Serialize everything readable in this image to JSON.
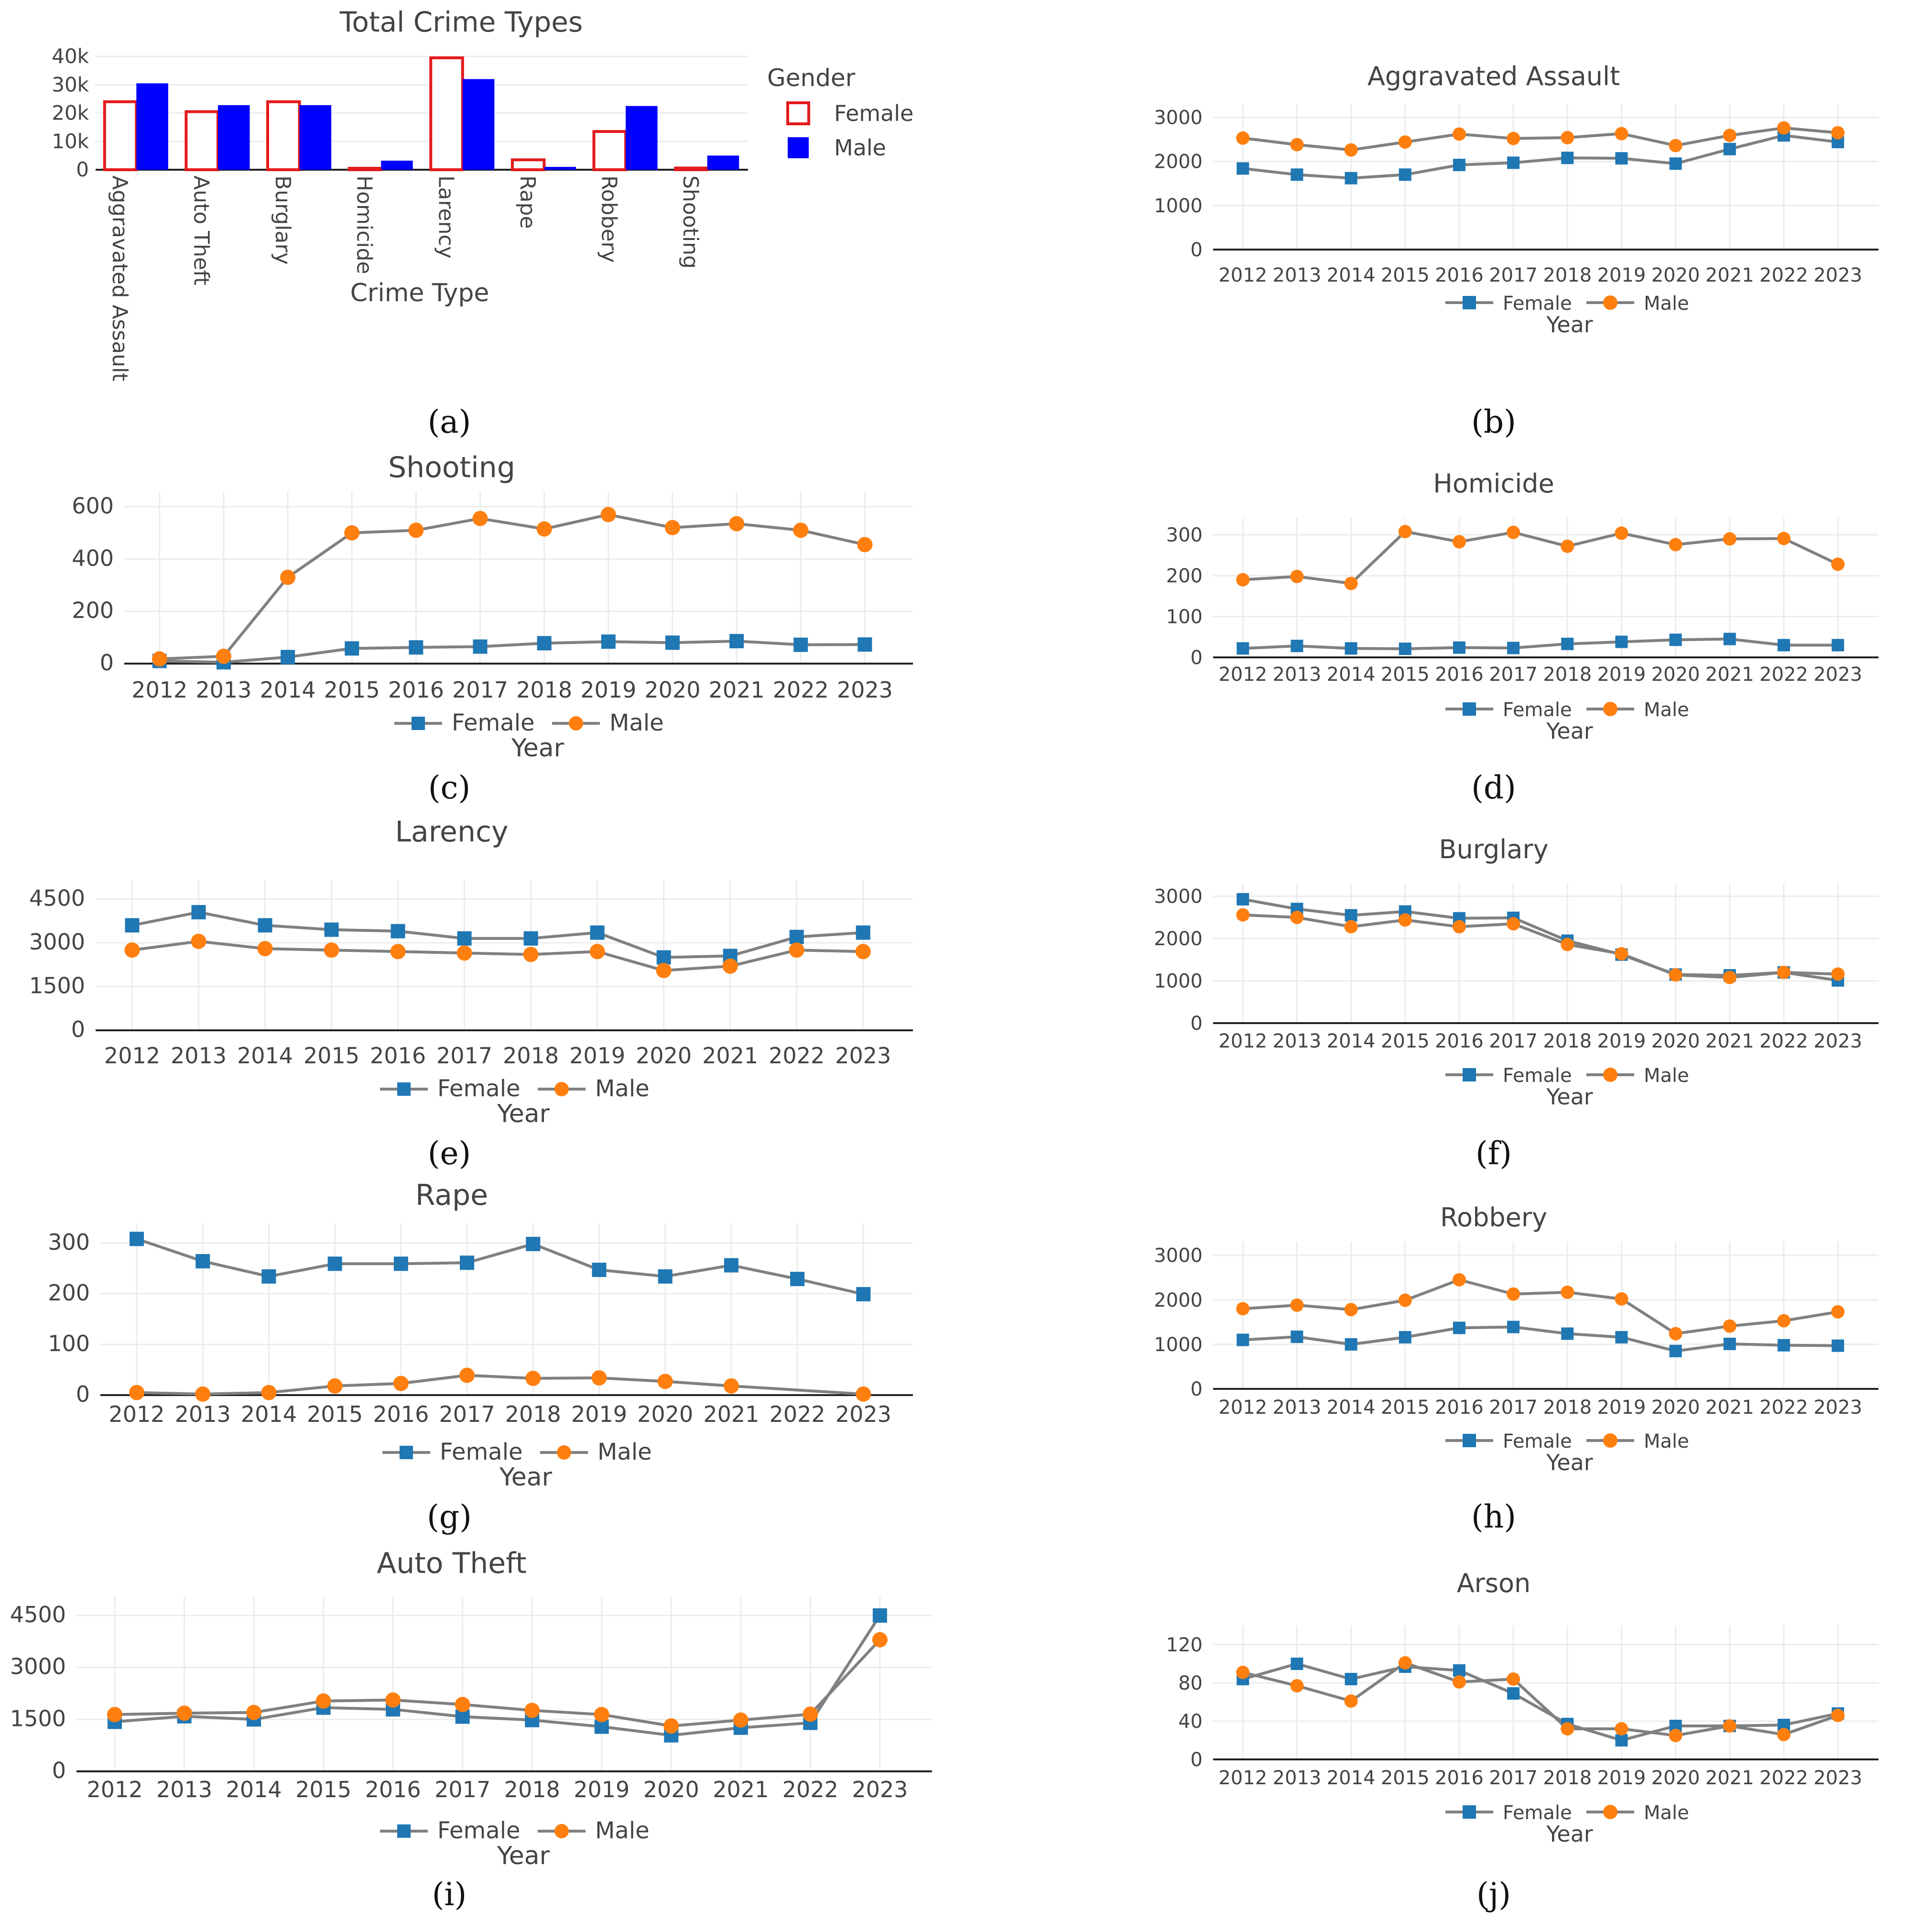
{
  "figure": {
    "panel_labels": [
      "(a)",
      "(b)",
      "(c)",
      "(d)",
      "(e)",
      "(f)",
      "(g)",
      "(h)",
      "(i)",
      "(j)"
    ],
    "colors": {
      "female_bar": "#e31a1c",
      "male_bar": "#0000ff",
      "female_line": "#1f77b4",
      "male_line": "#ff7f0e",
      "connector": "#808080",
      "grid": "#ececec",
      "text": "#444444"
    }
  },
  "chart_data": [
    {
      "id": "a",
      "type": "bar",
      "title": "Total Crime Types",
      "xlabel": "Crime Type",
      "ylabel": "",
      "categories": [
        "Aggravated Assault",
        "Auto Theft",
        "Burglary",
        "Homicide",
        "Larency",
        "Rape",
        "Robbery",
        "Shooting"
      ],
      "series": [
        {
          "name": "Female",
          "values": [
            24000,
            20500,
            24000,
            500,
            39500,
            3500,
            13500,
            600
          ]
        },
        {
          "name": "Male",
          "values": [
            30500,
            22800,
            22800,
            3200,
            32000,
            1000,
            22500,
            5000
          ]
        }
      ],
      "ylim": [
        0,
        40000
      ],
      "yticks": [
        0,
        10000,
        20000,
        30000,
        40000
      ],
      "ytick_labels": [
        "0",
        "10k",
        "20k",
        "30k",
        "40k"
      ],
      "legend_title": "Gender",
      "legend_position": "right"
    },
    {
      "id": "b",
      "type": "line",
      "title": "Aggravated Assault",
      "xlabel": "Year",
      "x": [
        "2012",
        "2013",
        "2014",
        "2015",
        "2016",
        "2017",
        "2018",
        "2019",
        "2020",
        "2021",
        "2022",
        "2023"
      ],
      "series": [
        {
          "name": "Female",
          "values": [
            1840,
            1700,
            1620,
            1700,
            1920,
            1970,
            2080,
            2070,
            1950,
            2280,
            2590,
            2440
          ]
        },
        {
          "name": "Male",
          "values": [
            2530,
            2380,
            2260,
            2440,
            2620,
            2520,
            2540,
            2630,
            2360,
            2590,
            2760,
            2650
          ]
        }
      ],
      "ylim": [
        0,
        3200
      ],
      "yticks": [
        0,
        1000,
        2000,
        3000
      ]
    },
    {
      "id": "c",
      "type": "line",
      "title": "Shooting",
      "xlabel": "Year",
      "x": [
        "2012",
        "2013",
        "2014",
        "2015",
        "2016",
        "2017",
        "2018",
        "2019",
        "2020",
        "2021",
        "2022",
        "2023"
      ],
      "series": [
        {
          "name": "Female",
          "values": [
            10,
            5,
            25,
            58,
            62,
            65,
            78,
            84,
            80,
            86,
            72,
            73
          ]
        },
        {
          "name": "Male",
          "values": [
            18,
            28,
            330,
            500,
            510,
            555,
            515,
            570,
            520,
            535,
            510,
            455
          ]
        }
      ],
      "ylim": [
        0,
        640
      ],
      "yticks": [
        0,
        200,
        400,
        600
      ]
    },
    {
      "id": "d",
      "type": "line",
      "title": "Homicide",
      "xlabel": "Year",
      "x": [
        "2012",
        "2013",
        "2014",
        "2015",
        "2016",
        "2017",
        "2018",
        "2019",
        "2020",
        "2021",
        "2022",
        "2023"
      ],
      "series": [
        {
          "name": "Female",
          "values": [
            22,
            28,
            22,
            21,
            24,
            23,
            33,
            38,
            43,
            45,
            30,
            30
          ]
        },
        {
          "name": "Male",
          "values": [
            190,
            198,
            181,
            308,
            283,
            306,
            272,
            304,
            276,
            290,
            291,
            228
          ]
        }
      ],
      "ylim": [
        0,
        330
      ],
      "yticks": [
        0,
        100,
        200,
        300
      ]
    },
    {
      "id": "e",
      "type": "line",
      "title": "Larency",
      "xlabel": "Year",
      "x": [
        "2012",
        "2013",
        "2014",
        "2015",
        "2016",
        "2017",
        "2018",
        "2019",
        "2020",
        "2021",
        "2022",
        "2023"
      ],
      "series": [
        {
          "name": "Female",
          "values": [
            3600,
            4050,
            3600,
            3450,
            3400,
            3150,
            3150,
            3350,
            2500,
            2550,
            3200,
            3350
          ]
        },
        {
          "name": "Male",
          "values": [
            2750,
            3050,
            2800,
            2750,
            2700,
            2650,
            2600,
            2700,
            2050,
            2200,
            2750,
            2700
          ]
        }
      ],
      "ylim": [
        0,
        5000
      ],
      "yticks": [
        0,
        1500,
        3000,
        4500
      ]
    },
    {
      "id": "f",
      "type": "line",
      "title": "Burglary",
      "xlabel": "Year",
      "x": [
        "2012",
        "2013",
        "2014",
        "2015",
        "2016",
        "2017",
        "2018",
        "2019",
        "2020",
        "2021",
        "2022",
        "2023"
      ],
      "series": [
        {
          "name": "Female",
          "values": [
            2930,
            2700,
            2550,
            2640,
            2480,
            2490,
            1950,
            1620,
            1150,
            1130,
            1200,
            1010
          ]
        },
        {
          "name": "Male",
          "values": [
            2560,
            2500,
            2280,
            2440,
            2280,
            2350,
            1860,
            1640,
            1140,
            1080,
            1200,
            1160
          ]
        }
      ],
      "ylim": [
        0,
        3200
      ],
      "yticks": [
        0,
        1000,
        2000,
        3000
      ]
    },
    {
      "id": "g",
      "type": "line",
      "title": "Rape",
      "xlabel": "Year",
      "x": [
        "2012",
        "2013",
        "2014",
        "2015",
        "2016",
        "2017",
        "2018",
        "2019",
        "2020",
        "2021",
        "2022",
        "2023"
      ],
      "series": [
        {
          "name": "Female",
          "values": [
            308,
            264,
            234,
            259,
            259,
            261,
            298,
            247,
            234,
            256,
            229,
            199
          ]
        },
        {
          "name": "Male",
          "values": [
            5,
            2,
            5,
            18,
            23,
            39,
            33,
            34,
            27,
            18,
            null,
            2
          ]
        }
      ],
      "ylim": [
        0,
        330
      ],
      "yticks": [
        0,
        100,
        200,
        300
      ]
    },
    {
      "id": "h",
      "type": "line",
      "title": "Robbery",
      "xlabel": "Year",
      "x": [
        "2012",
        "2013",
        "2014",
        "2015",
        "2016",
        "2017",
        "2018",
        "2019",
        "2020",
        "2021",
        "2022",
        "2023"
      ],
      "series": [
        {
          "name": "Female",
          "values": [
            1100,
            1170,
            1000,
            1160,
            1370,
            1390,
            1240,
            1160,
            850,
            1010,
            980,
            970
          ]
        },
        {
          "name": "Male",
          "values": [
            1800,
            1880,
            1780,
            1990,
            2450,
            2130,
            2170,
            2020,
            1240,
            1410,
            1530,
            1730
          ]
        }
      ],
      "ylim": [
        0,
        3200
      ],
      "yticks": [
        0,
        1000,
        2000,
        3000
      ]
    },
    {
      "id": "i",
      "type": "line",
      "title": "Auto Theft",
      "xlabel": "Year",
      "x": [
        "2012",
        "2013",
        "2014",
        "2015",
        "2016",
        "2017",
        "2018",
        "2019",
        "2020",
        "2021",
        "2022",
        "2023"
      ],
      "series": [
        {
          "name": "Female",
          "values": [
            1430,
            1590,
            1500,
            1840,
            1790,
            1580,
            1480,
            1290,
            1040,
            1260,
            1400,
            4500
          ]
        },
        {
          "name": "Male",
          "values": [
            1640,
            1680,
            1700,
            2030,
            2060,
            1930,
            1760,
            1640,
            1310,
            1480,
            1650,
            3800
          ]
        }
      ],
      "ylim": [
        0,
        4900
      ],
      "yticks": [
        0,
        1500,
        3000,
        4500
      ]
    },
    {
      "id": "j",
      "type": "line",
      "title": "Arson",
      "xlabel": "Year",
      "x": [
        "2012",
        "2013",
        "2014",
        "2015",
        "2016",
        "2017",
        "2018",
        "2019",
        "2020",
        "2021",
        "2022",
        "2023"
      ],
      "series": [
        {
          "name": "Female",
          "values": [
            84,
            100,
            84,
            97,
            93,
            69,
            37,
            20,
            35,
            35,
            36,
            48
          ]
        },
        {
          "name": "Male",
          "values": [
            91,
            77,
            61,
            101,
            81,
            84,
            32,
            32,
            25,
            35,
            26,
            46
          ]
        }
      ],
      "ylim": [
        0,
        135
      ],
      "yticks": [
        0,
        40,
        80,
        120
      ]
    }
  ]
}
